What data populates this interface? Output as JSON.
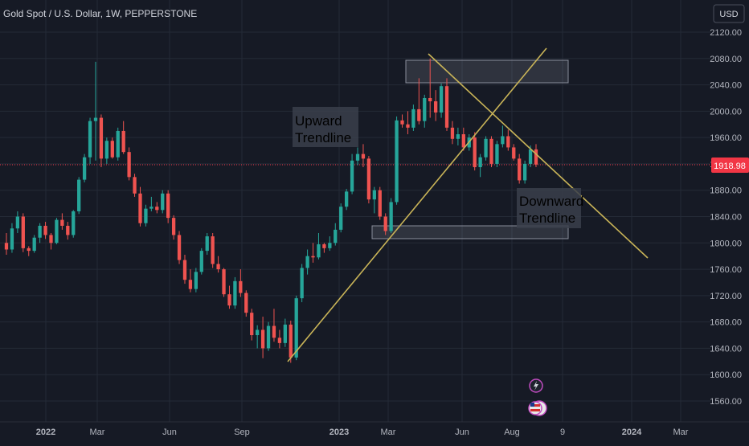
{
  "title": "Gold Spot / U.S. Dollar, 1W, PEPPERSTONE",
  "currency_label": "USD",
  "chart_data": {
    "type": "candlestick",
    "symbol": "Gold Spot / U.S. Dollar",
    "interval": "1W",
    "source": "PEPPERSTONE",
    "current_price": "1918.98",
    "ylim": [
      1530,
      2150
    ],
    "y_ticks": [
      "2120.00",
      "2080.00",
      "2040.00",
      "2000.00",
      "1960.00",
      "1920.00",
      "1880.00",
      "1840.00",
      "1800.00",
      "1760.00",
      "1720.00",
      "1680.00",
      "1640.00",
      "1600.00",
      "1560.00"
    ],
    "x_ticks": [
      "2022",
      "Mar",
      "Jun",
      "Sep",
      "2023",
      "Mar",
      "Jun",
      "Aug",
      "9",
      "2024",
      "Mar"
    ],
    "ohlc": [
      [
        1800,
        1815,
        1782,
        1790
      ],
      [
        1790,
        1830,
        1785,
        1822
      ],
      [
        1822,
        1848,
        1815,
        1840
      ],
      [
        1840,
        1845,
        1786,
        1792
      ],
      [
        1792,
        1795,
        1780,
        1788
      ],
      [
        1788,
        1812,
        1785,
        1808
      ],
      [
        1808,
        1830,
        1800,
        1826
      ],
      [
        1826,
        1832,
        1806,
        1812
      ],
      [
        1812,
        1815,
        1790,
        1800
      ],
      [
        1800,
        1838,
        1798,
        1835
      ],
      [
        1835,
        1845,
        1820,
        1826
      ],
      [
        1826,
        1832,
        1805,
        1812
      ],
      [
        1812,
        1850,
        1808,
        1848
      ],
      [
        1848,
        1900,
        1844,
        1896
      ],
      [
        1896,
        1935,
        1892,
        1930
      ],
      [
        1930,
        1990,
        1920,
        1985
      ],
      [
        1985,
        2075,
        1925,
        1990
      ],
      [
        1990,
        1995,
        1915,
        1928
      ],
      [
        1928,
        1960,
        1920,
        1955
      ],
      [
        1955,
        1960,
        1928,
        1930
      ],
      [
        1930,
        1975,
        1925,
        1970
      ],
      [
        1970,
        1985,
        1935,
        1938
      ],
      [
        1938,
        1945,
        1895,
        1900
      ],
      [
        1900,
        1905,
        1870,
        1875
      ],
      [
        1875,
        1885,
        1825,
        1830
      ],
      [
        1830,
        1858,
        1825,
        1852
      ],
      [
        1852,
        1870,
        1848,
        1855
      ],
      [
        1855,
        1862,
        1845,
        1850
      ],
      [
        1850,
        1880,
        1845,
        1875
      ],
      [
        1875,
        1880,
        1830,
        1838
      ],
      [
        1838,
        1842,
        1805,
        1812
      ],
      [
        1812,
        1818,
        1768,
        1774
      ],
      [
        1774,
        1782,
        1738,
        1744
      ],
      [
        1744,
        1760,
        1725,
        1730
      ],
      [
        1730,
        1762,
        1725,
        1756
      ],
      [
        1756,
        1792,
        1752,
        1788
      ],
      [
        1788,
        1815,
        1782,
        1810
      ],
      [
        1810,
        1815,
        1762,
        1768
      ],
      [
        1768,
        1780,
        1755,
        1760
      ],
      [
        1760,
        1762,
        1718,
        1722
      ],
      [
        1722,
        1735,
        1700,
        1705
      ],
      [
        1705,
        1748,
        1700,
        1742
      ],
      [
        1742,
        1760,
        1718,
        1724
      ],
      [
        1724,
        1728,
        1688,
        1694
      ],
      [
        1694,
        1700,
        1652,
        1660
      ],
      [
        1660,
        1675,
        1640,
        1668
      ],
      [
        1668,
        1688,
        1625,
        1640
      ],
      [
        1640,
        1680,
        1636,
        1674
      ],
      [
        1674,
        1700,
        1650,
        1656
      ],
      [
        1656,
        1668,
        1640,
        1648
      ],
      [
        1648,
        1685,
        1642,
        1676
      ],
      [
        1676,
        1682,
        1618,
        1626
      ],
      [
        1626,
        1720,
        1622,
        1716
      ],
      [
        1716,
        1768,
        1710,
        1762
      ],
      [
        1762,
        1790,
        1752,
        1780
      ],
      [
        1780,
        1800,
        1770,
        1778
      ],
      [
        1778,
        1815,
        1775,
        1798
      ],
      [
        1798,
        1800,
        1785,
        1792
      ],
      [
        1792,
        1810,
        1788,
        1800
      ],
      [
        1800,
        1830,
        1796,
        1820
      ],
      [
        1820,
        1860,
        1816,
        1855
      ],
      [
        1855,
        1882,
        1850,
        1878
      ],
      [
        1878,
        1935,
        1874,
        1925
      ],
      [
        1925,
        1945,
        1918,
        1935
      ],
      [
        1935,
        1950,
        1915,
        1928
      ],
      [
        1928,
        1932,
        1860,
        1866
      ],
      [
        1866,
        1885,
        1845,
        1880
      ],
      [
        1880,
        1885,
        1835,
        1840
      ],
      [
        1840,
        1845,
        1812,
        1818
      ],
      [
        1818,
        1868,
        1815,
        1862
      ],
      [
        1862,
        1992,
        1858,
        1986
      ],
      [
        1986,
        1995,
        1975,
        1980
      ],
      [
        1980,
        2000,
        1965,
        1975
      ],
      [
        1975,
        2010,
        1970,
        2003
      ],
      [
        2003,
        2050,
        1980,
        1985
      ],
      [
        1985,
        2025,
        1975,
        2020
      ],
      [
        2020,
        2080,
        1990,
        2015
      ],
      [
        2015,
        2032,
        1985,
        1998
      ],
      [
        1998,
        2042,
        1990,
        2038
      ],
      [
        2038,
        2050,
        1970,
        1975
      ],
      [
        1975,
        1985,
        1950,
        1958
      ],
      [
        1958,
        1975,
        1948,
        1965
      ],
      [
        1965,
        1975,
        1940,
        1945
      ],
      [
        1945,
        1965,
        1940,
        1960
      ],
      [
        1960,
        1968,
        1910,
        1915
      ],
      [
        1915,
        1935,
        1900,
        1930
      ],
      [
        1930,
        1962,
        1925,
        1958
      ],
      [
        1958,
        1962,
        1915,
        1920
      ],
      [
        1920,
        1955,
        1915,
        1950
      ],
      [
        1950,
        1978,
        1945,
        1962
      ],
      [
        1962,
        1972,
        1940,
        1945
      ],
      [
        1945,
        1950,
        1925,
        1928
      ],
      [
        1928,
        1935,
        1890,
        1895
      ],
      [
        1895,
        1925,
        1890,
        1920
      ],
      [
        1920,
        1948,
        1915,
        1942
      ],
      [
        1942,
        1950,
        1915,
        1919
      ]
    ]
  },
  "annotations": {
    "upward_label": [
      "Upward",
      "Trendline"
    ],
    "downward_label": [
      "Downward",
      "Trendline"
    ]
  },
  "colors": {
    "background": "#161a25",
    "up": "#26a69a",
    "down": "#ef5350",
    "trendline": "#c9b458",
    "grid": "#242a37",
    "price_tag": "#f23645"
  },
  "icons": [
    "lightning-icon",
    "flag-icon"
  ]
}
